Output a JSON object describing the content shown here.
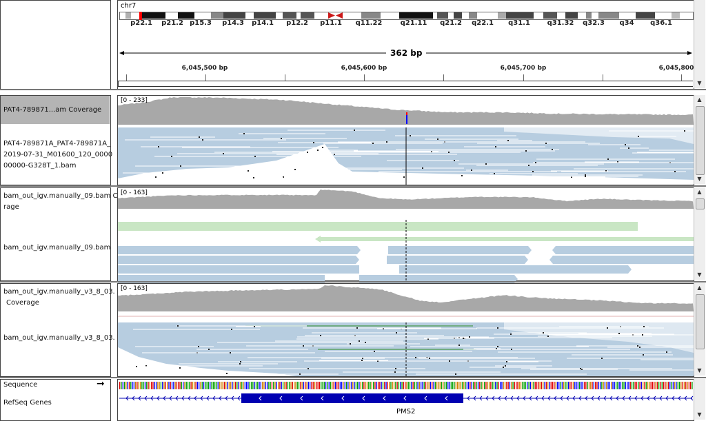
{
  "header": {
    "chromosome": "chr7",
    "span_label": "362 bp",
    "ruler_ticks": [
      "6,045,500 bp",
      "6,045,600 bp",
      "6,045,700 bp",
      "6,045,800"
    ],
    "cytobands": [
      "p22.1",
      "p21.2",
      "p15.3",
      "p14.3",
      "p14.1",
      "p12.2",
      "p11.1",
      "q11.22",
      "q21.11",
      "q21.2",
      "q22.1",
      "q31.1",
      "q31.32",
      "q32.3",
      "q34",
      "q36.1"
    ]
  },
  "panels": [
    {
      "coverage_label": "PAT4-789871...am Coverage",
      "coverage_range": "[0 - 233]",
      "alignment_label_lines": [
        "PAT4-789871A_PAT4-789871A_",
        "2019-07-31_M01600_120_0000",
        "00000-G328T_1.bam"
      ]
    },
    {
      "coverage_label_lines": [
        "bam_out_igv.manually_09.bam C",
        "rage"
      ],
      "coverage_range": "[0 - 163]",
      "alignment_label": "bam_out_igv.manually_09.bam"
    },
    {
      "coverage_label_lines": [
        "bam_out_igv.manually_v3_8_03.",
        "Coverage"
      ],
      "coverage_range": "[0 - 163]",
      "alignment_label": "bam_out_igv.manually_v3_8_03."
    }
  ],
  "bottom": {
    "sequence_label": "Sequence",
    "sequence_arrow": "➞",
    "refseq_label": "RefSeq Genes",
    "gene_name": "PMS2"
  },
  "colors": {
    "coverage": "#a8a8a8",
    "read": "#b7cde0",
    "read_alt_green": "#c9e6c4",
    "gene": "#0000b2",
    "centromere": "#cc1a1a",
    "selected_bg": "#b4b4b4"
  }
}
